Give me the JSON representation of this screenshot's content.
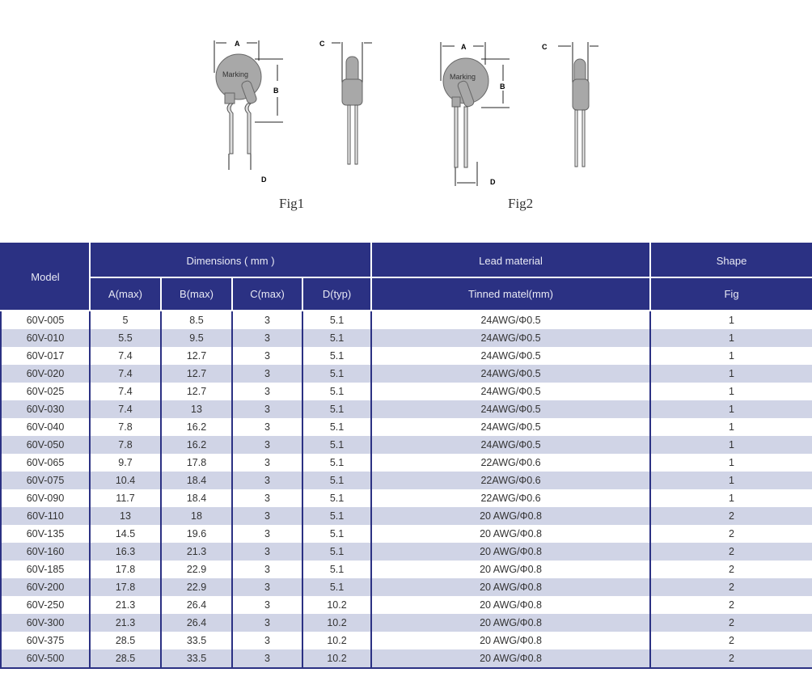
{
  "figures": [
    {
      "caption": "Fig1",
      "labels": {
        "a": "A",
        "b": "B",
        "c": "C",
        "d": "D",
        "marking": "Marking"
      }
    },
    {
      "caption": "Fig2",
      "labels": {
        "a": "A",
        "b": "B",
        "c": "C",
        "d": "D",
        "marking": "Marking"
      }
    }
  ],
  "colors": {
    "header": "#2b3183",
    "row_alt": "#d0d4e6"
  },
  "table": {
    "headers": {
      "model": "Model",
      "dimensions": "Dimensions ( mm )",
      "lead_material": "Lead material",
      "shape": "Shape",
      "a": "A(max)",
      "b": "B(max)",
      "c": "C(max)",
      "d": "D(typ)",
      "tinned": "Tinned matel(mm)",
      "fig": "Fig"
    },
    "rows": [
      [
        "60V-005",
        "5",
        "8.5",
        "3",
        "5.1",
        "24AWG/Φ0.5",
        "1"
      ],
      [
        "60V-010",
        "5.5",
        "9.5",
        "3",
        "5.1",
        "24AWG/Φ0.5",
        "1"
      ],
      [
        "60V-017",
        "7.4",
        "12.7",
        "3",
        "5.1",
        "24AWG/Φ0.5",
        "1"
      ],
      [
        "60V-020",
        "7.4",
        "12.7",
        "3",
        "5.1",
        "24AWG/Φ0.5",
        "1"
      ],
      [
        "60V-025",
        "7.4",
        "12.7",
        "3",
        "5.1",
        "24AWG/Φ0.5",
        "1"
      ],
      [
        "60V-030",
        "7.4",
        "13",
        "3",
        "5.1",
        "24AWG/Φ0.5",
        "1"
      ],
      [
        "60V-040",
        "7.8",
        "16.2",
        "3",
        "5.1",
        "24AWG/Φ0.5",
        "1"
      ],
      [
        "60V-050",
        "7.8",
        "16.2",
        "3",
        "5.1",
        "24AWG/Φ0.5",
        "1"
      ],
      [
        "60V-065",
        "9.7",
        "17.8",
        "3",
        "5.1",
        "22AWG/Φ0.6",
        "1"
      ],
      [
        "60V-075",
        "10.4",
        "18.4",
        "3",
        "5.1",
        "22AWG/Φ0.6",
        "1"
      ],
      [
        "60V-090",
        "11.7",
        "18.4",
        "3",
        "5.1",
        "22AWG/Φ0.6",
        "1"
      ],
      [
        "60V-110",
        "13",
        "18",
        "3",
        "5.1",
        "20 AWG/Φ0.8",
        "2"
      ],
      [
        "60V-135",
        "14.5",
        "19.6",
        "3",
        "5.1",
        "20 AWG/Φ0.8",
        "2"
      ],
      [
        "60V-160",
        "16.3",
        "21.3",
        "3",
        "5.1",
        "20 AWG/Φ0.8",
        "2"
      ],
      [
        "60V-185",
        "17.8",
        "22.9",
        "3",
        "5.1",
        "20 AWG/Φ0.8",
        "2"
      ],
      [
        "60V-200",
        "17.8",
        "22.9",
        "3",
        "5.1",
        "20 AWG/Φ0.8",
        "2"
      ],
      [
        "60V-250",
        "21.3",
        "26.4",
        "3",
        "10.2",
        "20 AWG/Φ0.8",
        "2"
      ],
      [
        "60V-300",
        "21.3",
        "26.4",
        "3",
        "10.2",
        "20 AWG/Φ0.8",
        "2"
      ],
      [
        "60V-375",
        "28.5",
        "33.5",
        "3",
        "10.2",
        "20 AWG/Φ0.8",
        "2"
      ],
      [
        "60V-500",
        "28.5",
        "33.5",
        "3",
        "10.2",
        "20 AWG/Φ0.8",
        "2"
      ]
    ]
  }
}
